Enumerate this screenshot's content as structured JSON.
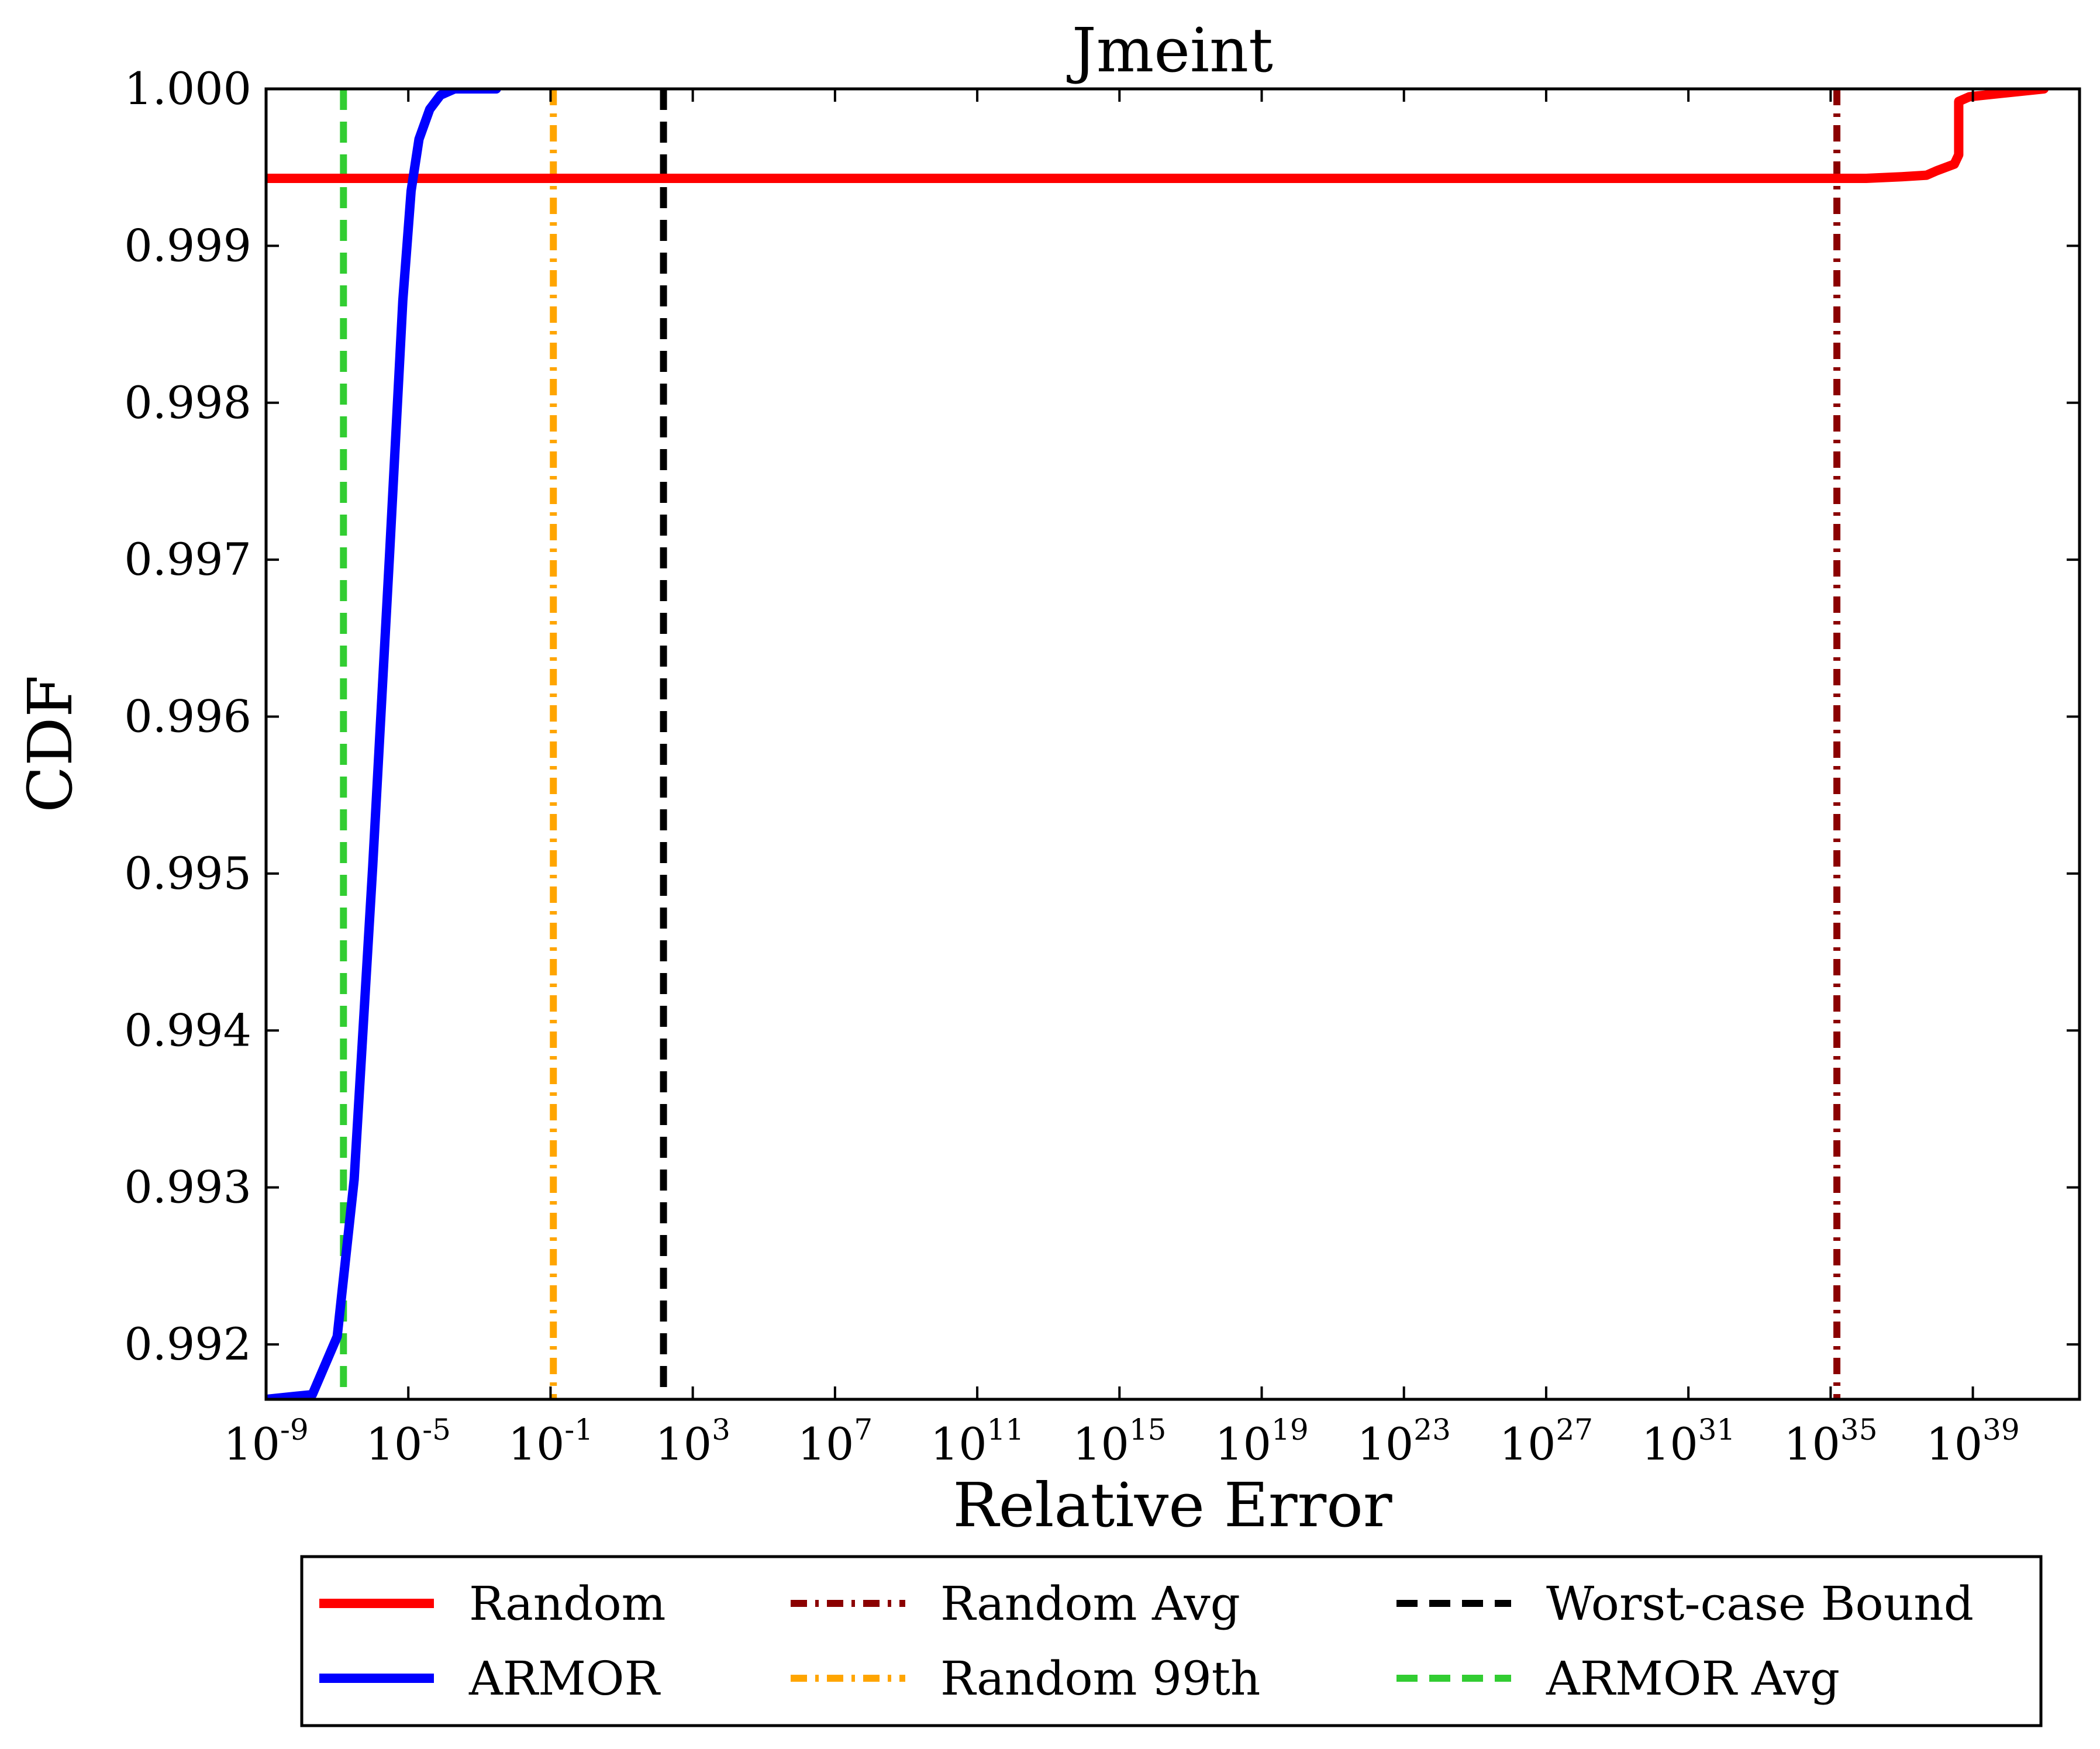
{
  "chart_data": {
    "type": "line",
    "title": "Jmeint",
    "xlabel": "Relative Error",
    "ylabel": "CDF",
    "xscale": "log",
    "xlim": [
      1e-09,
      1e+42
    ],
    "ylim": [
      0.99165,
      1.0
    ],
    "xticks": [
      {
        "base": "10",
        "exp": "-9",
        "value": 1e-09
      },
      {
        "base": "10",
        "exp": "-5",
        "value": 1e-05
      },
      {
        "base": "10",
        "exp": "-1",
        "value": 0.1
      },
      {
        "base": "10",
        "exp": "3",
        "value": 1000.0
      },
      {
        "base": "10",
        "exp": "7",
        "value": 10000000.0
      },
      {
        "base": "10",
        "exp": "11",
        "value": 100000000000.0
      },
      {
        "base": "10",
        "exp": "15",
        "value": 1000000000000000.0
      },
      {
        "base": "10",
        "exp": "19",
        "value": 1e+19
      },
      {
        "base": "10",
        "exp": "23",
        "value": 1e+23
      },
      {
        "base": "10",
        "exp": "27",
        "value": 1e+27
      },
      {
        "base": "10",
        "exp": "31",
        "value": 1e+31
      },
      {
        "base": "10",
        "exp": "35",
        "value": 1e+35
      },
      {
        "base": "10",
        "exp": "39",
        "value": 1e+39
      }
    ],
    "yticks": [
      {
        "label": "0.992",
        "value": 0.992
      },
      {
        "label": "0.993",
        "value": 0.993
      },
      {
        "label": "0.994",
        "value": 0.994
      },
      {
        "label": "0.995",
        "value": 0.995
      },
      {
        "label": "0.996",
        "value": 0.996
      },
      {
        "label": "0.997",
        "value": 0.997
      },
      {
        "label": "0.998",
        "value": 0.998
      },
      {
        "label": "0.999",
        "value": 0.999
      },
      {
        "label": "1.000",
        "value": 1.0
      }
    ],
    "grid": false,
    "legend_position": "below plot, 3 columns",
    "series": [
      {
        "name": "Random",
        "kind": "line",
        "color": "#ff0000",
        "dash": "solid",
        "x": [
          1e-09,
          1e+35,
          1e+36,
          1e+37,
          5e+37,
          1e+38,
          3e+38,
          4e+38,
          4e+38,
          8e+38,
          1e+41
        ],
        "y": [
          0.99943,
          0.99943,
          0.99943,
          0.99944,
          0.99945,
          0.99948,
          0.99952,
          0.99958,
          0.99992,
          0.99995,
          1.0
        ]
      },
      {
        "name": "ARMOR",
        "kind": "line",
        "color": "#0000ff",
        "dash": "solid",
        "x": [
          1e-09,
          2e-08,
          1e-07,
          3e-07,
          1e-06,
          3e-06,
          7e-06,
          1.2e-05,
          2e-05,
          4e-05,
          8e-05,
          0.0002,
          0.0005,
          0.003
        ],
        "y": [
          0.99165,
          0.99168,
          0.99205,
          0.99305,
          0.99505,
          0.99705,
          0.99865,
          0.99935,
          0.99968,
          0.99987,
          0.99996,
          1.0,
          1.0,
          1.0
        ]
      },
      {
        "name": "Random Avg",
        "kind": "vline",
        "color": "#8b0000",
        "dash": "dashdot",
        "x": 1.5e+35
      },
      {
        "name": "Random 99th",
        "kind": "vline",
        "color": "#ffa500",
        "dash": "dashdot",
        "x": 0.12
      },
      {
        "name": "Worst-case Bound",
        "kind": "vline",
        "color": "#000000",
        "dash": "dashed",
        "x": 150
      },
      {
        "name": "ARMOR Avg",
        "kind": "vline",
        "color": "#32cd32",
        "dash": "dashed",
        "x": 1.5e-07
      }
    ]
  }
}
